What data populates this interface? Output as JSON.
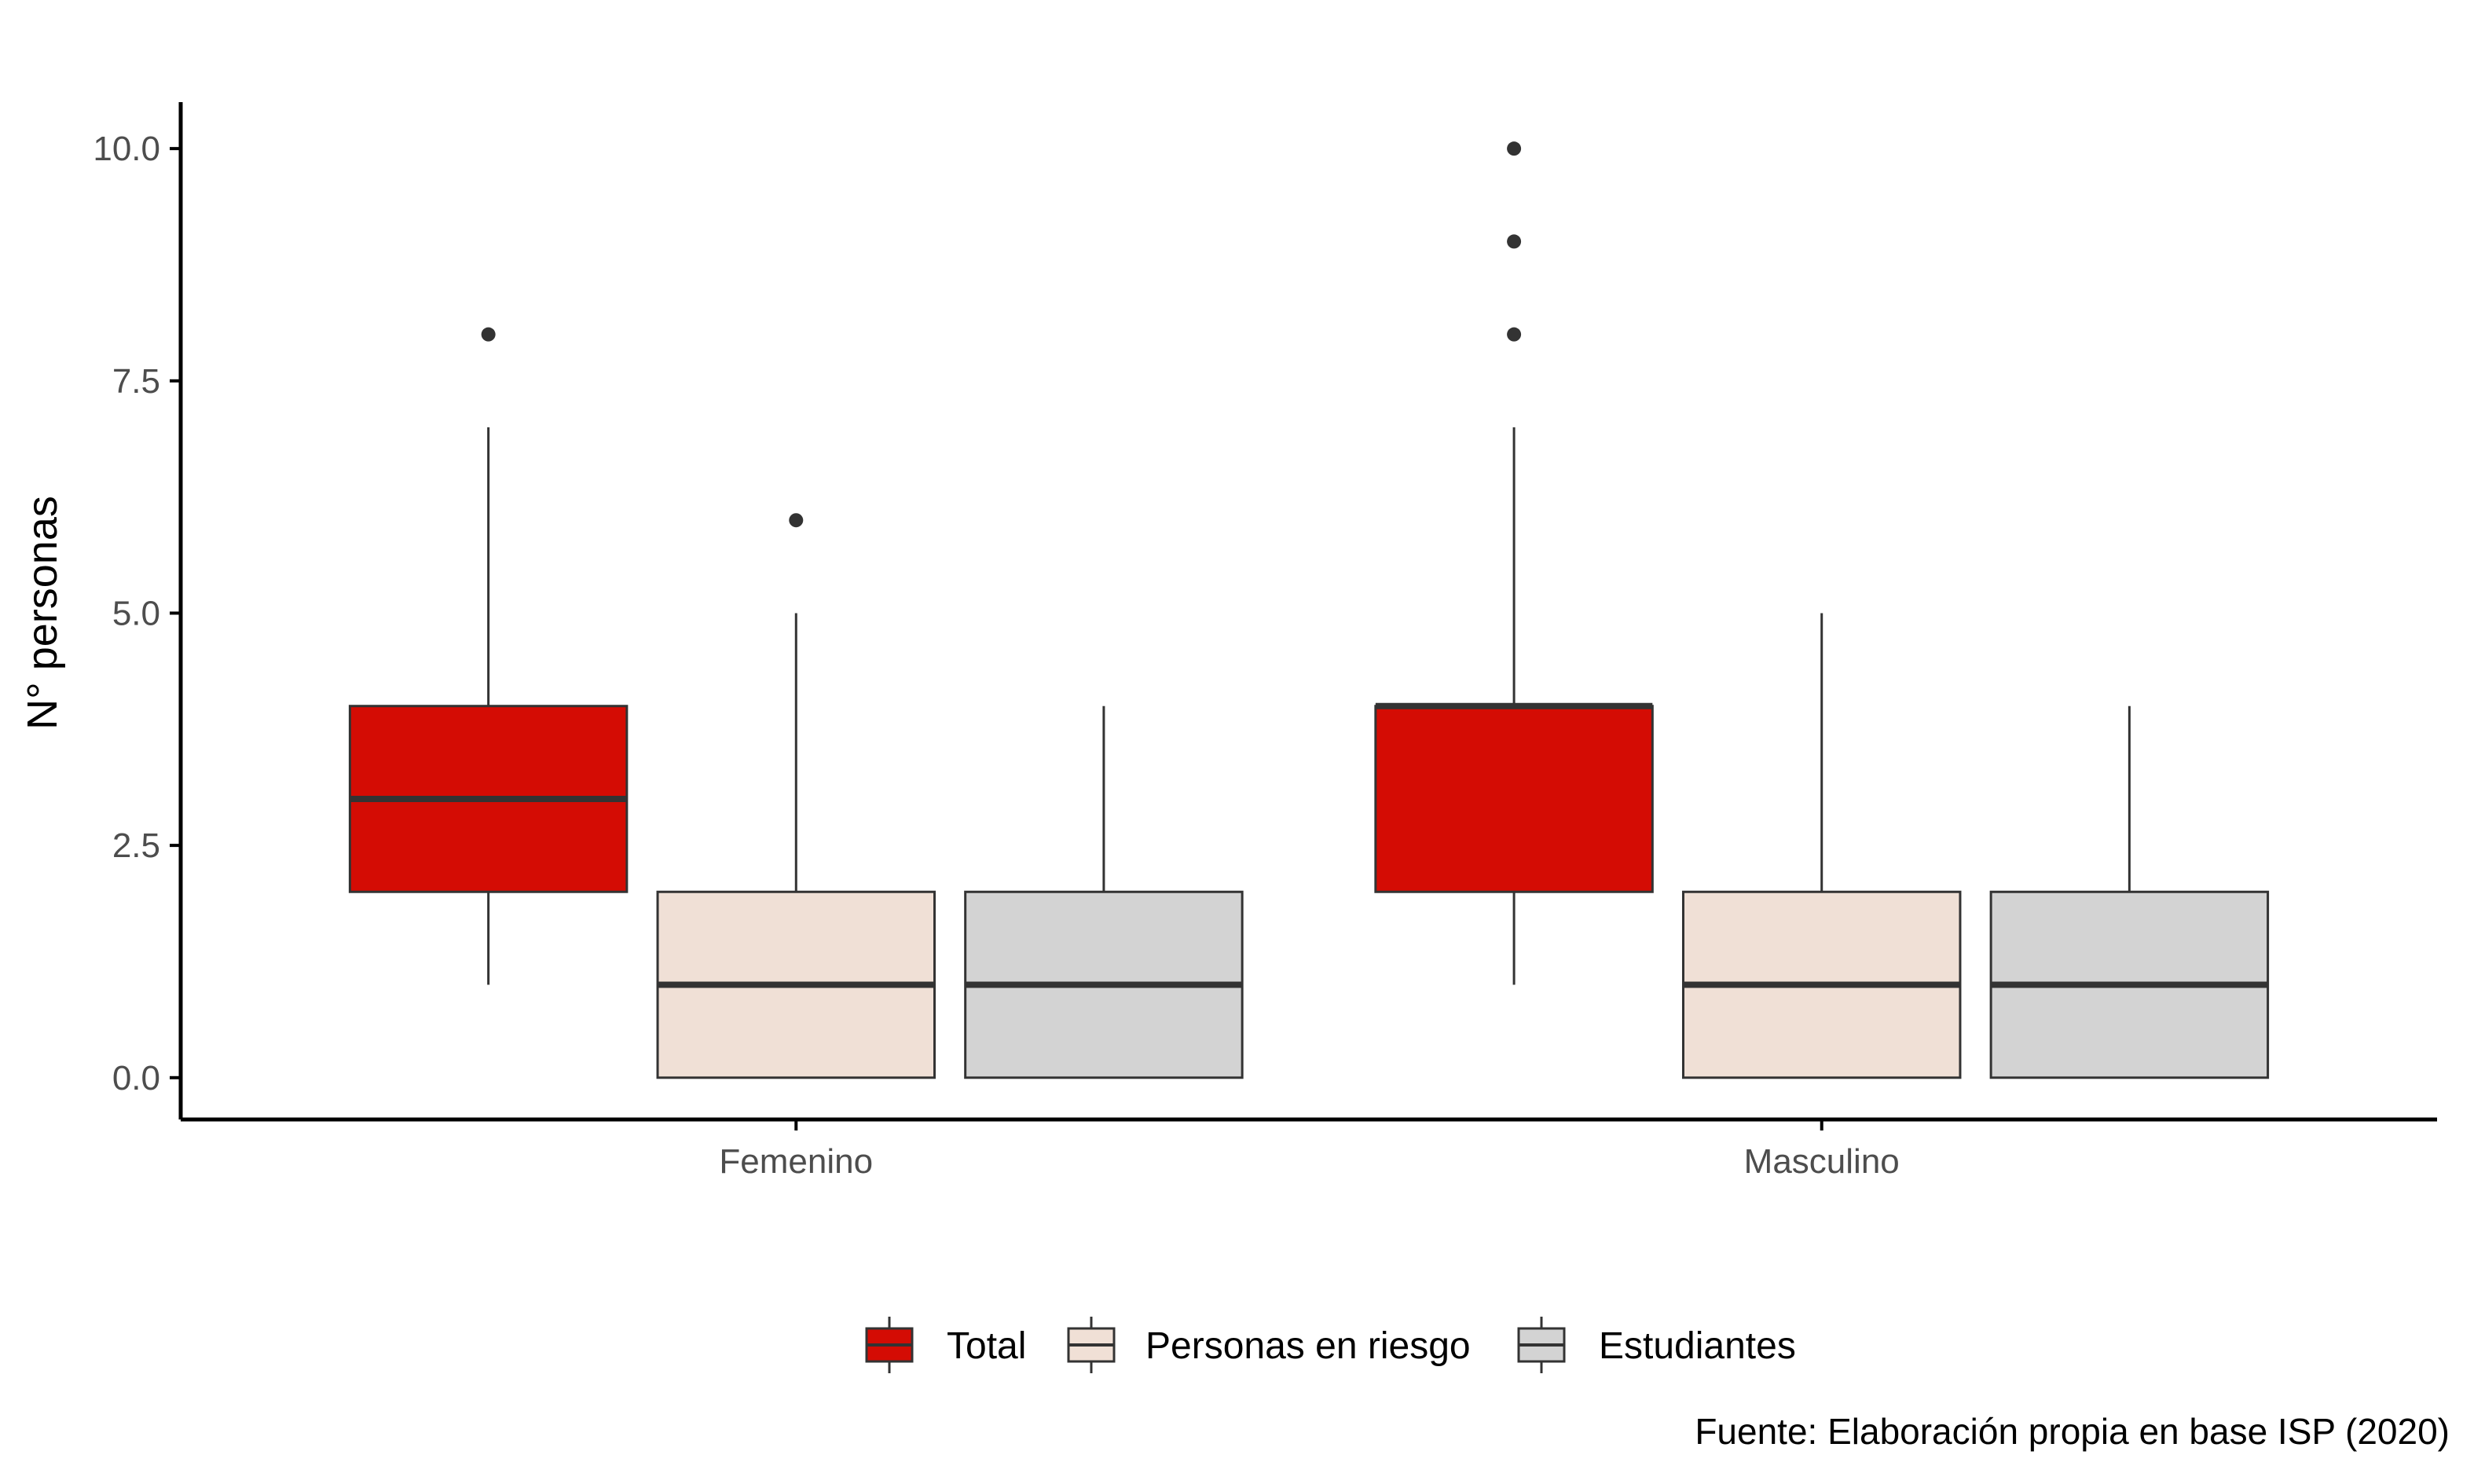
{
  "chart_data": {
    "type": "boxplot",
    "title": "",
    "xlabel": "",
    "ylabel": "N° personas",
    "ylim": [
      -0.45,
      10.5
    ],
    "yticks": [
      "0.0",
      "2.5",
      "5.0",
      "7.5",
      "10.0"
    ],
    "ytick_values": [
      0,
      2.5,
      5,
      7.5,
      10
    ],
    "categories": [
      "Femenino",
      "Masculino"
    ],
    "grid": false,
    "legend_position": "bottom",
    "series": [
      {
        "name": "Total",
        "color": "#d40c04",
        "boxes": [
          {
            "category": "Femenino",
            "whisker_low": 1,
            "q1": 2,
            "median": 3,
            "q3": 4,
            "whisker_high": 7,
            "outliers": [
              8
            ]
          },
          {
            "category": "Masculino",
            "whisker_low": 1,
            "q1": 2,
            "median": 4,
            "q3": 4,
            "whisker_high": 7,
            "outliers": [
              8,
              9,
              10
            ]
          }
        ]
      },
      {
        "name": "Personas en riesgo",
        "color": "#f0e0d6",
        "boxes": [
          {
            "category": "Femenino",
            "whisker_low": 0,
            "q1": 0,
            "median": 1,
            "q3": 2,
            "whisker_high": 5,
            "outliers": [
              6
            ]
          },
          {
            "category": "Masculino",
            "whisker_low": 0,
            "q1": 0,
            "median": 1,
            "q3": 2,
            "whisker_high": 5,
            "outliers": []
          }
        ]
      },
      {
        "name": "Estudiantes",
        "color": "#d3d3d3",
        "boxes": [
          {
            "category": "Femenino",
            "whisker_low": 0,
            "q1": 0,
            "median": 1,
            "q3": 2,
            "whisker_high": 4,
            "outliers": []
          },
          {
            "category": "Masculino",
            "whisker_low": 0,
            "q1": 0,
            "median": 1,
            "q3": 2,
            "whisker_high": 4,
            "outliers": []
          }
        ]
      }
    ],
    "caption": "Fuente: Elaboración propia en base ISP (2020)"
  }
}
